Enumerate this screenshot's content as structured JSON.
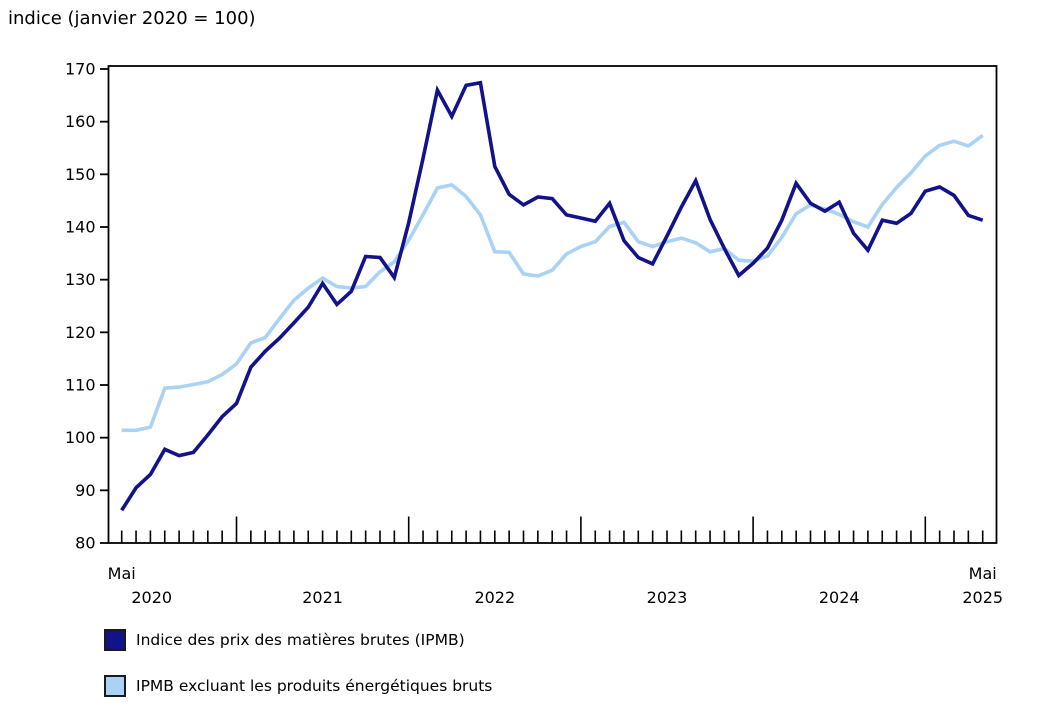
{
  "title": "indice (janvier 2020 = 100)",
  "chart_data": {
    "type": "line",
    "title": "indice (janvier 2020 = 100)",
    "grid": false,
    "legend_position": "bottom-left",
    "ylim": [
      80,
      170
    ],
    "y_axis": {
      "ticks": [
        80,
        90,
        100,
        110,
        120,
        130,
        140,
        150,
        160,
        170
      ]
    },
    "x_axis": {
      "start_label": "Mai",
      "end_label": "Mai",
      "year_labels": [
        "2020",
        "2021",
        "2022",
        "2023",
        "2024",
        "2025"
      ],
      "months": [
        "2020-05",
        "2020-06",
        "2020-07",
        "2020-08",
        "2020-09",
        "2020-10",
        "2020-11",
        "2020-12",
        "2021-01",
        "2021-02",
        "2021-03",
        "2021-04",
        "2021-05",
        "2021-06",
        "2021-07",
        "2021-08",
        "2021-09",
        "2021-10",
        "2021-11",
        "2021-12",
        "2022-01",
        "2022-02",
        "2022-03",
        "2022-04",
        "2022-05",
        "2022-06",
        "2022-07",
        "2022-08",
        "2022-09",
        "2022-10",
        "2022-11",
        "2022-12",
        "2023-01",
        "2023-02",
        "2023-03",
        "2023-04",
        "2023-05",
        "2023-06",
        "2023-07",
        "2023-08",
        "2023-09",
        "2023-10",
        "2023-11",
        "2023-12",
        "2024-01",
        "2024-02",
        "2024-03",
        "2024-04",
        "2024-05",
        "2024-06",
        "2024-07",
        "2024-08",
        "2024-09",
        "2024-10",
        "2024-11",
        "2024-12",
        "2025-01",
        "2025-02",
        "2025-03",
        "2025-04",
        "2025-05"
      ]
    },
    "series": [
      {
        "name": "Indice des prix des matières brutes (IPMB)",
        "color": "#12128A",
        "values": [
          86.2,
          90.5,
          93.0,
          97.8,
          96.6,
          97.2,
          100.5,
          104.0,
          106.5,
          113.4,
          116.4,
          118.9,
          121.8,
          124.8,
          129.3,
          125.3,
          127.8,
          134.4,
          134.2,
          130.4,
          140.8,
          153.0,
          166.0,
          161.0,
          166.9,
          167.4,
          151.5,
          146.2,
          144.2,
          145.7,
          145.4,
          142.3,
          141.7,
          141.1,
          144.5,
          137.4,
          134.2,
          133.0,
          138.3,
          143.8,
          148.8,
          141.4,
          135.9,
          130.8,
          133.1,
          136.0,
          141.3,
          148.3,
          144.5,
          143.0,
          144.7,
          138.8,
          135.6,
          141.3,
          140.7,
          142.6,
          146.8,
          147.6,
          146.0,
          142.2,
          141.3
        ]
      },
      {
        "name": "IPMB excluant les produits énergétiques bruts",
        "color": "#A9D2F5",
        "values": [
          101.4,
          101.4,
          102.0,
          109.4,
          109.6,
          110.1,
          110.6,
          112.0,
          114.0,
          118.0,
          119.0,
          122.6,
          126.1,
          128.4,
          130.3,
          128.7,
          128.4,
          128.7,
          131.5,
          133.4,
          137.5,
          142.3,
          147.4,
          148.0,
          145.8,
          142.3,
          135.3,
          135.2,
          131.1,
          130.7,
          131.8,
          134.9,
          136.3,
          137.2,
          140.1,
          140.9,
          137.2,
          136.3,
          137.2,
          137.9,
          137.0,
          135.3,
          135.9,
          133.7,
          133.5,
          134.5,
          138.0,
          142.5,
          144.2,
          143.4,
          142.4,
          141.0,
          140.0,
          144.3,
          147.5,
          150.3,
          153.5,
          155.5,
          156.3,
          155.4,
          157.4
        ]
      }
    ]
  }
}
